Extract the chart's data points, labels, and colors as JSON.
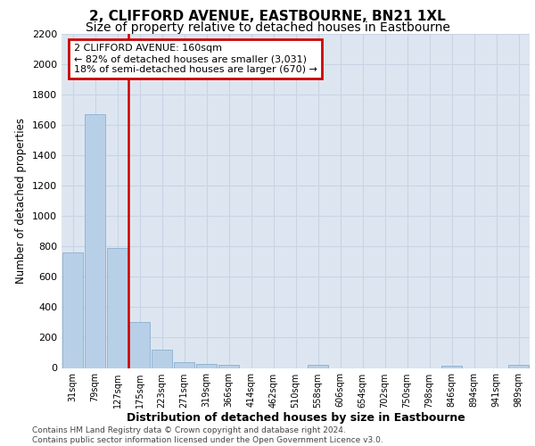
{
  "title": "2, CLIFFORD AVENUE, EASTBOURNE, BN21 1XL",
  "subtitle": "Size of property relative to detached houses in Eastbourne",
  "xlabel": "Distribution of detached houses by size in Eastbourne",
  "ylabel": "Number of detached properties",
  "categories": [
    "31sqm",
    "79sqm",
    "127sqm",
    "175sqm",
    "223sqm",
    "271sqm",
    "319sqm",
    "366sqm",
    "414sqm",
    "462sqm",
    "510sqm",
    "558sqm",
    "606sqm",
    "654sqm",
    "702sqm",
    "750sqm",
    "798sqm",
    "846sqm",
    "894sqm",
    "941sqm",
    "989sqm"
  ],
  "values": [
    760,
    1670,
    790,
    300,
    120,
    40,
    25,
    20,
    0,
    0,
    0,
    20,
    0,
    0,
    0,
    0,
    0,
    15,
    0,
    0,
    20
  ],
  "bar_color": "#b8cfe8",
  "bar_edge_color": "#8ab0d0",
  "vline_color": "#cc0000",
  "vline_x": 2.5,
  "annotation_text": "2 CLIFFORD AVENUE: 160sqm\n← 82% of detached houses are smaller (3,031)\n18% of semi-detached houses are larger (670) →",
  "annotation_box_color": "#cc0000",
  "ylim": [
    0,
    2200
  ],
  "yticks": [
    0,
    200,
    400,
    600,
    800,
    1000,
    1200,
    1400,
    1600,
    1800,
    2000,
    2200
  ],
  "grid_color": "#c8d4e4",
  "background_color": "#dde6f0",
  "footer_line1": "Contains HM Land Registry data © Crown copyright and database right 2024.",
  "footer_line2": "Contains public sector information licensed under the Open Government Licence v3.0.",
  "title_fontsize": 11,
  "subtitle_fontsize": 10,
  "xlabel_fontsize": 9,
  "ylabel_fontsize": 8.5
}
